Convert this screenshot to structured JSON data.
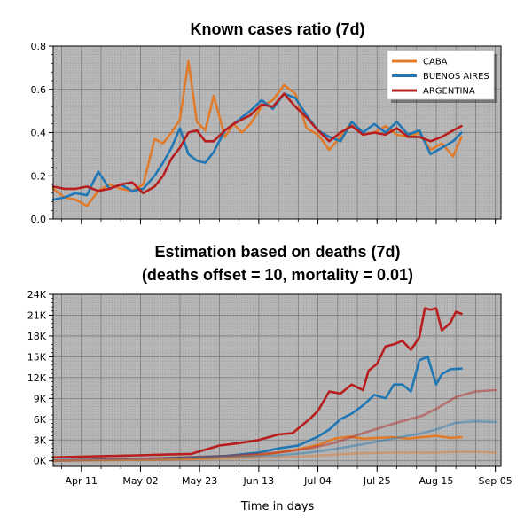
{
  "chart_data": [
    {
      "type": "line",
      "title": "Known cases ratio (7d)",
      "ylim": [
        0,
        0.8
      ],
      "yticks": [
        "0.0",
        "0.2",
        "0.4",
        "0.6",
        "0.8"
      ],
      "yticks_values": [
        0,
        0.2,
        0.4,
        0.6,
        0.8
      ],
      "grid": "major and minor",
      "legend_position": "top-right",
      "x_dates": [
        "2020-04-01",
        "2020-04-05",
        "2020-04-09",
        "2020-04-13",
        "2020-04-17",
        "2020-04-21",
        "2020-04-25",
        "2020-04-29",
        "2020-05-03",
        "2020-05-07",
        "2020-05-10",
        "2020-05-13",
        "2020-05-16",
        "2020-05-19",
        "2020-05-22",
        "2020-05-25",
        "2020-05-28",
        "2020-06-01",
        "2020-06-04",
        "2020-06-07",
        "2020-06-10",
        "2020-06-14",
        "2020-06-18",
        "2020-06-22",
        "2020-06-26",
        "2020-06-30",
        "2020-07-04",
        "2020-07-08",
        "2020-07-12",
        "2020-07-16",
        "2020-07-20",
        "2020-07-24",
        "2020-07-28",
        "2020-08-01",
        "2020-08-05",
        "2020-08-09",
        "2020-08-13",
        "2020-08-17",
        "2020-08-21",
        "2020-08-24"
      ],
      "series": [
        {
          "name": "CABA",
          "color": "#e07b2c",
          "values": [
            0.14,
            0.1,
            0.09,
            0.06,
            0.13,
            0.16,
            0.14,
            0.13,
            0.16,
            0.37,
            0.35,
            0.4,
            0.46,
            0.73,
            0.45,
            0.41,
            0.57,
            0.38,
            0.44,
            0.4,
            0.44,
            0.52,
            0.55,
            0.62,
            0.58,
            0.42,
            0.39,
            0.32,
            0.38,
            0.45,
            0.39,
            0.4,
            0.43,
            0.39,
            0.38,
            0.4,
            0.32,
            0.35,
            0.29,
            0.38
          ]
        },
        {
          "name": "BUENOS AIRES",
          "color": "#2177b4",
          "values": [
            0.09,
            0.1,
            0.12,
            0.11,
            0.22,
            0.14,
            0.16,
            0.13,
            0.14,
            0.2,
            0.26,
            0.33,
            0.42,
            0.3,
            0.27,
            0.26,
            0.31,
            0.41,
            0.44,
            0.47,
            0.5,
            0.55,
            0.51,
            0.58,
            0.56,
            0.48,
            0.41,
            0.38,
            0.36,
            0.45,
            0.4,
            0.44,
            0.4,
            0.45,
            0.39,
            0.41,
            0.3,
            0.33,
            0.36,
            0.4
          ]
        },
        {
          "name": "ARGENTINA",
          "color": "#b81e1e",
          "values": [
            0.15,
            0.14,
            0.14,
            0.15,
            0.13,
            0.14,
            0.16,
            0.17,
            0.12,
            0.15,
            0.2,
            0.28,
            0.33,
            0.4,
            0.41,
            0.36,
            0.36,
            0.41,
            0.44,
            0.46,
            0.48,
            0.53,
            0.52,
            0.58,
            0.52,
            0.47,
            0.41,
            0.36,
            0.4,
            0.43,
            0.39,
            0.4,
            0.39,
            0.42,
            0.38,
            0.38,
            0.36,
            0.38,
            0.41,
            0.43
          ]
        }
      ]
    },
    {
      "type": "line",
      "title": "Estimation based on deaths (7d)",
      "subtitle": "(deaths offset = 10, mortality = 0.01)",
      "xlabel": "Time in days",
      "ylim": [
        -800,
        24000
      ],
      "yticks": [
        "0K",
        "3K",
        "6K",
        "9K",
        "12K",
        "15K",
        "18K",
        "21K",
        "24K"
      ],
      "yticks_values": [
        0,
        3000,
        6000,
        9000,
        12000,
        15000,
        18000,
        21000,
        24000
      ],
      "xlim": [
        "2020-04-01",
        "2020-09-07"
      ],
      "xticks": [
        "Apr 11",
        "May 02",
        "May 23",
        "Jun 13",
        "Jul 04",
        "Jul 25",
        "Aug 15",
        "Sep 05"
      ],
      "xticks_values": [
        "2020-04-11",
        "2020-05-02",
        "2020-05-23",
        "2020-06-13",
        "2020-07-04",
        "2020-07-25",
        "2020-08-15",
        "2020-09-05"
      ],
      "grid": "major and minor",
      "series": [
        {
          "name": "ARGENTINA",
          "color": "#b81e1e",
          "opacity": 1,
          "x": [
            "2020-04-01",
            "2020-04-10",
            "2020-04-20",
            "2020-05-01",
            "2020-05-10",
            "2020-05-20",
            "2020-05-30",
            "2020-06-05",
            "2020-06-13",
            "2020-06-20",
            "2020-06-25",
            "2020-07-01",
            "2020-07-04",
            "2020-07-08",
            "2020-07-12",
            "2020-07-16",
            "2020-07-20",
            "2020-07-22",
            "2020-07-25",
            "2020-07-28",
            "2020-07-31",
            "2020-08-03",
            "2020-08-06",
            "2020-08-09",
            "2020-08-11",
            "2020-08-13",
            "2020-08-15",
            "2020-08-17",
            "2020-08-20",
            "2020-08-22",
            "2020-08-24"
          ],
          "values": [
            500,
            600,
            700,
            800,
            900,
            1000,
            2200,
            2500,
            3000,
            3800,
            4000,
            6000,
            7200,
            10000,
            9700,
            11000,
            10200,
            13000,
            14000,
            16500,
            16800,
            17300,
            16000,
            17800,
            22000,
            21800,
            22000,
            18800,
            19900,
            21500,
            21200
          ]
        },
        {
          "name": "BUENOS AIRES",
          "color": "#2177b4",
          "opacity": 1,
          "x": [
            "2020-04-01",
            "2020-05-01",
            "2020-05-20",
            "2020-06-01",
            "2020-06-13",
            "2020-06-20",
            "2020-06-27",
            "2020-07-04",
            "2020-07-08",
            "2020-07-12",
            "2020-07-16",
            "2020-07-20",
            "2020-07-24",
            "2020-07-28",
            "2020-07-31",
            "2020-08-03",
            "2020-08-06",
            "2020-08-09",
            "2020-08-12",
            "2020-08-15",
            "2020-08-17",
            "2020-08-20",
            "2020-08-24"
          ],
          "values": [
            100,
            250,
            500,
            700,
            1200,
            1800,
            2200,
            3500,
            4500,
            6000,
            6800,
            8000,
            9500,
            9000,
            11000,
            11000,
            10000,
            14500,
            15000,
            11000,
            12500,
            13200,
            13300
          ]
        },
        {
          "name": "CABA",
          "color": "#e07b2c",
          "opacity": 1,
          "x": [
            "2020-04-01",
            "2020-05-01",
            "2020-05-20",
            "2020-06-01",
            "2020-06-15",
            "2020-06-25",
            "2020-07-04",
            "2020-07-10",
            "2020-07-15",
            "2020-07-20",
            "2020-07-25",
            "2020-07-31",
            "2020-08-05",
            "2020-08-10",
            "2020-08-15",
            "2020-08-20",
            "2020-08-24"
          ],
          "values": [
            50,
            150,
            300,
            500,
            900,
            1500,
            2300,
            3200,
            3500,
            3200,
            3300,
            3400,
            3200,
            3400,
            3600,
            3300,
            3400
          ]
        },
        {
          "name": "ARGENTINA (faded)",
          "color": "#b81e1e",
          "opacity": 0.45,
          "x": [
            "2020-04-01",
            "2020-05-01",
            "2020-06-01",
            "2020-06-20",
            "2020-07-01",
            "2020-07-10",
            "2020-07-20",
            "2020-08-01",
            "2020-08-10",
            "2020-08-15",
            "2020-08-22",
            "2020-08-29",
            "2020-09-05"
          ],
          "values": [
            0,
            300,
            700,
            1200,
            1800,
            2600,
            4000,
            5500,
            6500,
            7500,
            9200,
            10000,
            10200
          ]
        },
        {
          "name": "BUENOS AIRES (faded)",
          "color": "#2177b4",
          "opacity": 0.45,
          "x": [
            "2020-04-01",
            "2020-05-01",
            "2020-06-01",
            "2020-06-20",
            "2020-07-01",
            "2020-07-10",
            "2020-07-20",
            "2020-08-01",
            "2020-08-10",
            "2020-08-15",
            "2020-08-22",
            "2020-08-29",
            "2020-09-05"
          ],
          "values": [
            0,
            200,
            500,
            800,
            1200,
            1700,
            2400,
            3300,
            4000,
            4500,
            5500,
            5700,
            5600
          ]
        },
        {
          "name": "CABA (faded)",
          "color": "#e07b2c",
          "opacity": 0.45,
          "x": [
            "2020-04-01",
            "2020-05-01",
            "2020-06-01",
            "2020-06-20",
            "2020-07-01",
            "2020-07-10",
            "2020-07-20",
            "2020-08-01",
            "2020-08-10",
            "2020-08-15",
            "2020-08-22",
            "2020-08-29",
            "2020-09-05"
          ],
          "values": [
            0,
            150,
            300,
            500,
            700,
            900,
            1100,
            1200,
            1200,
            1200,
            1300,
            1300,
            1200
          ]
        }
      ]
    }
  ]
}
